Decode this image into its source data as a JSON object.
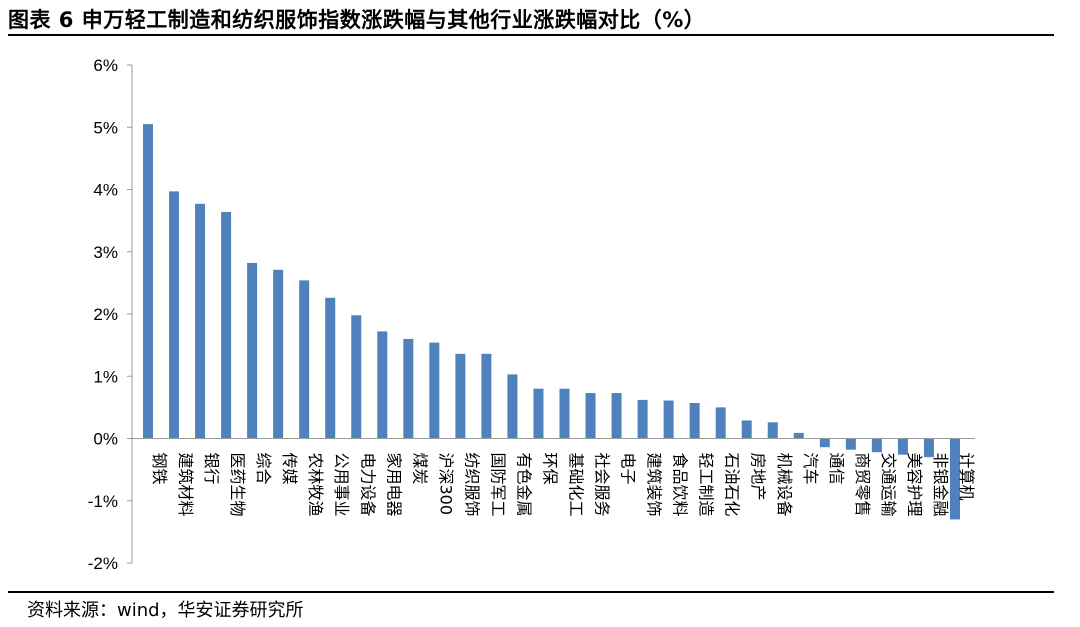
{
  "title": "图表 6 申万轻工制造和纺织服饰指数涨跌幅与其他行业涨跌幅对比（%）",
  "source": "资料来源：wind，华安证券研究所",
  "chart_data": {
    "type": "bar",
    "categories": [
      "钢铁",
      "建筑材料",
      "银行",
      "医药生物",
      "综合",
      "传媒",
      "农林牧渔",
      "公用事业",
      "电力设备",
      "家用电器",
      "煤炭",
      "沪深300",
      "纺织服饰",
      "国防军工",
      "有色金属",
      "环保",
      "基础化工",
      "社会服务",
      "电子",
      "建筑装饰",
      "食品饮料",
      "轻工制造",
      "石油石化",
      "房地产",
      "机械设备",
      "汽车",
      "通信",
      "商贸零售",
      "交通运输",
      "美容护理",
      "非银金融",
      "计算机"
    ],
    "values": [
      5.05,
      3.97,
      3.77,
      3.64,
      2.82,
      2.71,
      2.54,
      2.26,
      1.98,
      1.72,
      1.6,
      1.54,
      1.36,
      1.36,
      1.03,
      0.8,
      0.8,
      0.73,
      0.73,
      0.62,
      0.61,
      0.57,
      0.5,
      0.29,
      0.26,
      0.09,
      -0.14,
      -0.18,
      -0.22,
      -0.26,
      -0.3,
      -1.3
    ],
    "yticks": [
      "6%",
      "5%",
      "4%",
      "3%",
      "2%",
      "1%",
      "0%",
      "-1%",
      "-2%"
    ],
    "ylim": [
      -2,
      6
    ],
    "bar_color": "#4f81bd",
    "grid": false
  }
}
